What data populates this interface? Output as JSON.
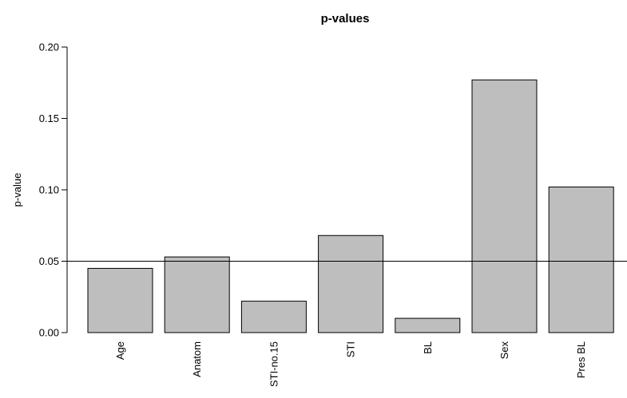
{
  "chart_data": {
    "type": "bar",
    "title": "p-values",
    "xlabel": "",
    "ylabel": "p-value",
    "categories": [
      "Age",
      "Anatom",
      "STI-no.15",
      "STI",
      "BL",
      "Sex",
      "Pres BL"
    ],
    "values": [
      0.045,
      0.053,
      0.022,
      0.068,
      0.01,
      0.177,
      0.102
    ],
    "ylim": [
      0,
      0.2
    ],
    "yticks": [
      "0.00",
      "0.05",
      "0.10",
      "0.15",
      "0.20"
    ],
    "reference_line": 0.05,
    "grid": false,
    "bar_color": "#bebebe",
    "bar_border_color": "#000000"
  }
}
